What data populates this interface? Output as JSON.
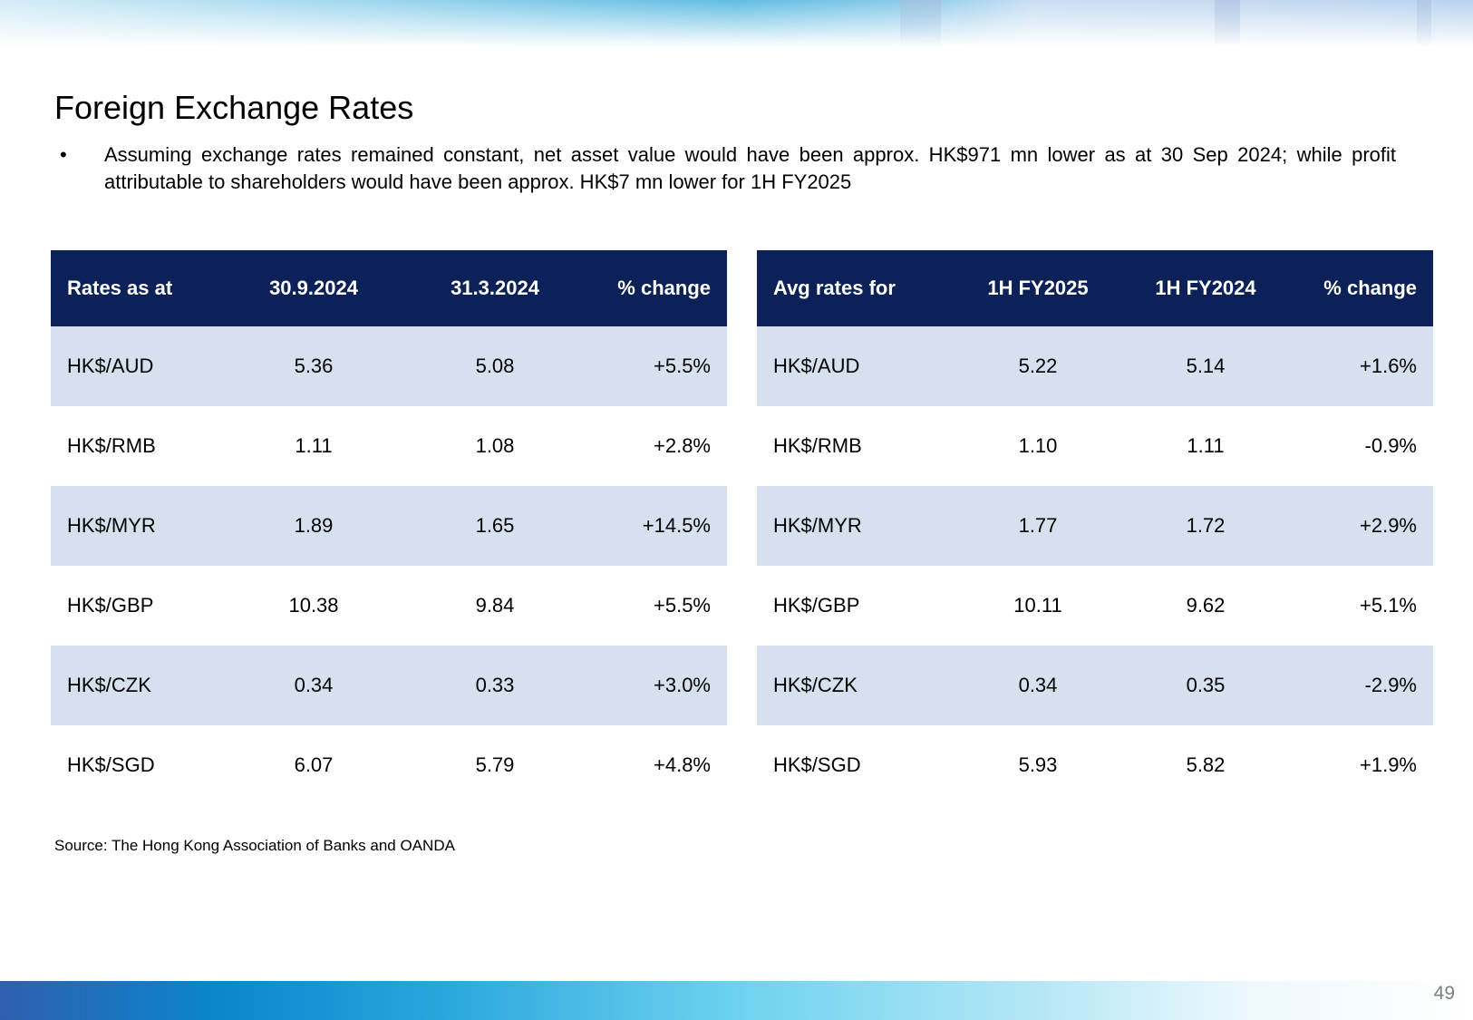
{
  "title": "Foreign Exchange Rates",
  "bullet": {
    "symbol": "•",
    "text": "Assuming exchange rates remained constant, net asset value would have been approx. HK$971 mn lower as at 30 Sep 2024; while profit attributable to shareholders would have been approx. HK$7 mn lower for 1H FY2025"
  },
  "table_left": {
    "headers": [
      "Rates as at",
      "30.9.2024",
      "31.3.2024",
      "% change"
    ],
    "rows": [
      [
        "HK$/AUD",
        "5.36",
        "5.08",
        "+5.5%"
      ],
      [
        "HK$/RMB",
        "1.11",
        "1.08",
        "+2.8%"
      ],
      [
        "HK$/MYR",
        "1.89",
        "1.65",
        "+14.5%"
      ],
      [
        "HK$/GBP",
        "10.38",
        "9.84",
        "+5.5%"
      ],
      [
        "HK$/CZK",
        "0.34",
        "0.33",
        "+3.0%"
      ],
      [
        "HK$/SGD",
        "6.07",
        "5.79",
        "+4.8%"
      ]
    ]
  },
  "table_right": {
    "headers": [
      "Avg rates for",
      "1H FY2025",
      "1H FY2024",
      "% change"
    ],
    "rows": [
      [
        "HK$/AUD",
        "5.22",
        "5.14",
        "+1.6%"
      ],
      [
        "HK$/RMB",
        "1.10",
        "1.11",
        "-0.9%"
      ],
      [
        "HK$/MYR",
        "1.77",
        "1.72",
        "+2.9%"
      ],
      [
        "HK$/GBP",
        "10.11",
        "9.62",
        "+5.1%"
      ],
      [
        "HK$/CZK",
        "0.34",
        "0.35",
        "-2.9%"
      ],
      [
        "HK$/SGD",
        "5.93",
        "5.82",
        "+1.9%"
      ]
    ]
  },
  "source": "Source: The Hong Kong Association of Banks and OANDA",
  "page_number": "49",
  "colors": {
    "header_bg": "#0b2158",
    "row_shade": "#d6e0ef",
    "page_number": "#7f7f7f"
  }
}
